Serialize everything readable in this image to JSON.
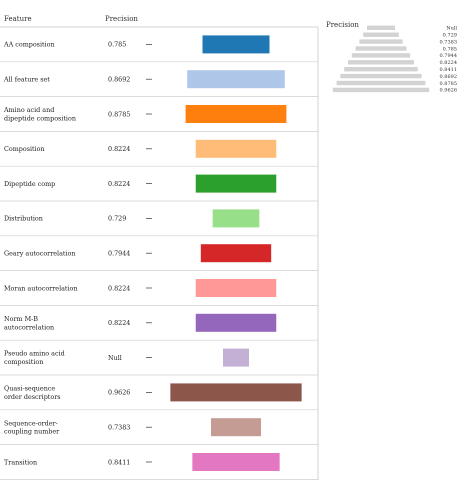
{
  "chart_data": {
    "type": "bar",
    "header": {
      "feature": "Feature",
      "precision": "Precision"
    },
    "legend_title": "Precision",
    "legend_values": [
      "Null",
      "0.729",
      "0.7383",
      "0.785",
      "0.7944",
      "0.8224",
      "0.8411",
      "0.8692",
      "0.8785",
      "0.9626"
    ],
    "rows": [
      {
        "label": [
          "AA composition"
        ],
        "precision": "0.785",
        "value": 0.785,
        "color": "#1f77b4"
      },
      {
        "label": [
          "All feature set"
        ],
        "precision": "0.8692",
        "value": 0.8692,
        "color": "#aec7e8"
      },
      {
        "label": [
          "Amino acid and",
          "dipeptide composition"
        ],
        "precision": "0.8785",
        "value": 0.8785,
        "color": "#ff7f0e"
      },
      {
        "label": [
          "Composition"
        ],
        "precision": "0.8224",
        "value": 0.8224,
        "color": "#ffbb78"
      },
      {
        "label": [
          "Dipeptide comp"
        ],
        "precision": "0.8224",
        "value": 0.8224,
        "color": "#2ca02c"
      },
      {
        "label": [
          "Distribution"
        ],
        "precision": "0.729",
        "value": 0.729,
        "color": "#98df8a"
      },
      {
        "label": [
          "Geary autocorrelation"
        ],
        "precision": "0.7944",
        "value": 0.7944,
        "color": "#d62728"
      },
      {
        "label": [
          "Moran autocorrelation"
        ],
        "precision": "0.8224",
        "value": 0.8224,
        "color": "#ff9896"
      },
      {
        "label": [
          "Norm M-B",
          "autocorrelation"
        ],
        "precision": "0.8224",
        "value": 0.8224,
        "color": "#9467bd"
      },
      {
        "label": [
          "Pseudo amino acid",
          "composition"
        ],
        "precision": "Null",
        "value": null,
        "color": "#c5b0d5"
      },
      {
        "label": [
          "Quasi-sequence",
          "order descriptors"
        ],
        "precision": "0.9626",
        "value": 0.9626,
        "color": "#8c564b"
      },
      {
        "label": [
          "Sequence-order-",
          "coupling number"
        ],
        "precision": "0.7383",
        "value": 0.7383,
        "color": "#c49c94"
      },
      {
        "label": [
          "Transition"
        ],
        "precision": "0.8411",
        "value": 0.8411,
        "color": "#e377c2"
      }
    ]
  }
}
